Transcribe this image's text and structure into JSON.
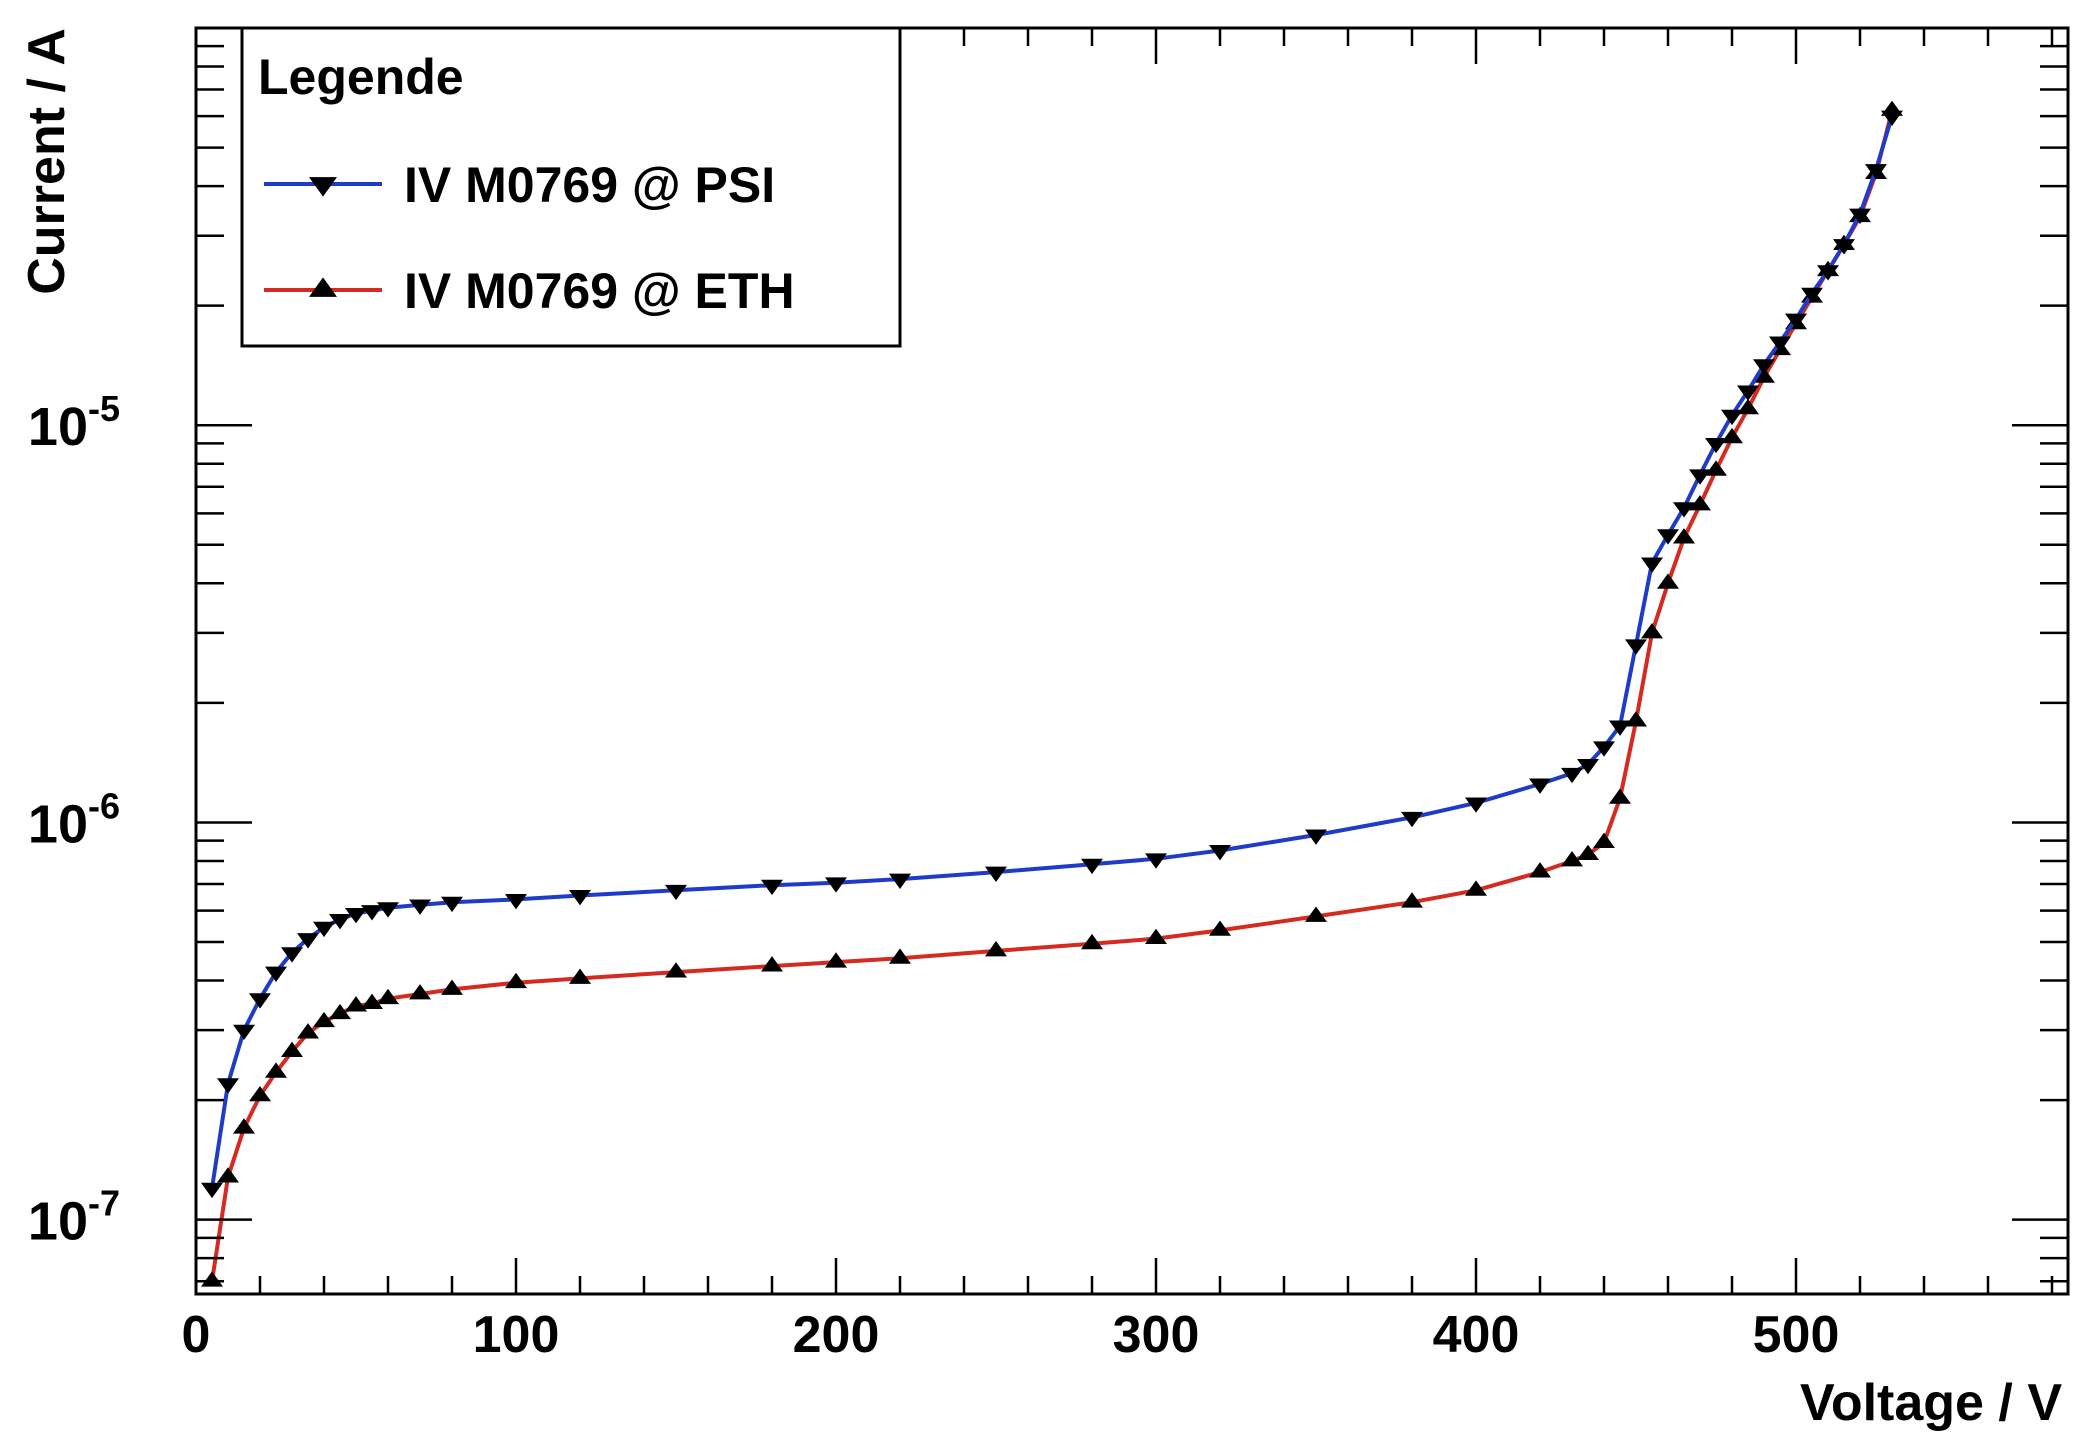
{
  "chart_data": {
    "type": "line",
    "title": "",
    "xlabel": "Voltage / V",
    "ylabel": "Current / A",
    "xlim": [
      0,
      585
    ],
    "ylim": [
      6.5e-08,
      0.0001
    ],
    "yscale": "log",
    "grid": false,
    "legend": {
      "title": "Legende",
      "placement": "top-left"
    },
    "x_ticks": [
      {
        "value": 0,
        "label": "0"
      },
      {
        "value": 100,
        "label": "100"
      },
      {
        "value": 200,
        "label": "200"
      },
      {
        "value": 300,
        "label": "300"
      },
      {
        "value": 400,
        "label": "400"
      },
      {
        "value": 500,
        "label": "500"
      }
    ],
    "y_ticks": [
      {
        "value": 1e-07,
        "base": "10",
        "exp": "-7"
      },
      {
        "value": 1e-06,
        "base": "10",
        "exp": "-6"
      },
      {
        "value": 1e-05,
        "base": "10",
        "exp": "-5"
      }
    ],
    "x": [
      5,
      10,
      15,
      20,
      25,
      30,
      35,
      40,
      45,
      50,
      55,
      60,
      70,
      80,
      100,
      120,
      150,
      180,
      200,
      220,
      250,
      280,
      300,
      320,
      350,
      380,
      400,
      420,
      430,
      435,
      440,
      445,
      450,
      455,
      460,
      465,
      470,
      475,
      480,
      485,
      490,
      495,
      500,
      505,
      510,
      515,
      520,
      525,
      530
    ],
    "series": [
      {
        "name": "IV M0769 @ PSI",
        "color": "#1f3cc8",
        "marker": "triangle-down",
        "values": [
          1.2e-07,
          2.2e-07,
          3e-07,
          3.6e-07,
          4.2e-07,
          4.7e-07,
          5.1e-07,
          5.45e-07,
          5.7e-07,
          5.9e-07,
          6e-07,
          6.1e-07,
          6.2e-07,
          6.3e-07,
          6.4e-07,
          6.55e-07,
          6.75e-07,
          6.95e-07,
          7.05e-07,
          7.2e-07,
          7.5e-07,
          7.85e-07,
          8.1e-07,
          8.5e-07,
          9.3e-07,
          1.03e-06,
          1.12e-06,
          1.25e-06,
          1.33e-06,
          1.4e-06,
          1.55e-06,
          1.75e-06,
          2.8e-06,
          4.5e-06,
          5.3e-06,
          6.2e-06,
          7.5e-06,
          9e-06,
          1.06e-05,
          1.22e-05,
          1.42e-05,
          1.62e-05,
          1.85e-05,
          2.15e-05,
          2.45e-05,
          2.85e-05,
          3.4e-05,
          4.4e-05,
          6e-05
        ]
      },
      {
        "name": "IV M0769 @ ETH",
        "color": "#d42a20",
        "marker": "triangle-up",
        "values": [
          7e-08,
          1.28e-07,
          1.7e-07,
          2.05e-07,
          2.35e-07,
          2.65e-07,
          2.95e-07,
          3.15e-07,
          3.3e-07,
          3.45e-07,
          3.5e-07,
          3.6e-07,
          3.7e-07,
          3.8e-07,
          3.95e-07,
          4.05e-07,
          4.2e-07,
          4.35e-07,
          4.45e-07,
          4.55e-07,
          4.75e-07,
          4.95e-07,
          5.1e-07,
          5.35e-07,
          5.8e-07,
          6.3e-07,
          6.75e-07,
          7.5e-07,
          8e-07,
          8.3e-07,
          8.9e-07,
          1.15e-06,
          1.8e-06,
          3e-06,
          4e-06,
          5.2e-06,
          6.3e-06,
          7.7e-06,
          9.3e-06,
          1.1e-05,
          1.32e-05,
          1.55e-05,
          1.8e-05,
          2.1e-05,
          2.45e-05,
          2.85e-05,
          3.35e-05,
          4.3e-05,
          6.2e-05
        ]
      }
    ]
  }
}
